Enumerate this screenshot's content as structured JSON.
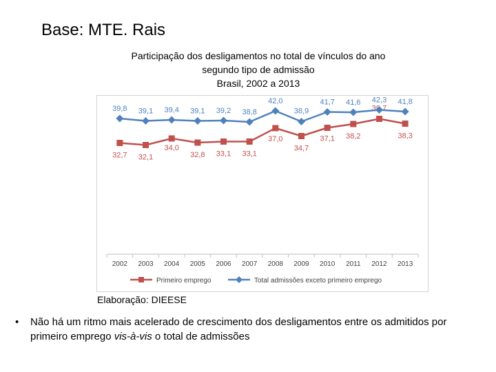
{
  "header": {
    "source": "Base: MTE. Rais"
  },
  "footer": {
    "credit": "Elaboração: DIEESE"
  },
  "bullet": {
    "symbol": "•",
    "text_before": "Não há um ritmo mais acelerado de crescimento dos desligamentos entre os admitidos por primeiro emprego ",
    "text_italic": "vis-à-vis",
    "text_after": " o total de admissões"
  },
  "chart_data": {
    "type": "line",
    "title": "Participação dos desligamentos no total de vínculos do ano segundo tipo de admissão Brasil, 2002 a 2013",
    "title_lines": [
      "Participação dos desligamentos no total de vínculos do ano",
      "segundo tipo de admissão",
      "Brasil, 2002 a 2013"
    ],
    "categories": [
      "2002",
      "2003",
      "2004",
      "2005",
      "2006",
      "2007",
      "2008",
      "2009",
      "2010",
      "2011",
      "2012",
      "2013"
    ],
    "ylim": [
      0,
      44
    ],
    "xlabel": "",
    "ylabel": "",
    "grid": false,
    "legend_position": "bottom",
    "series": [
      {
        "name": "Primeiro emprego",
        "color": "#c0504d",
        "marker": "square",
        "values": [
          32.7,
          32.1,
          34.0,
          32.8,
          33.1,
          33.1,
          37.0,
          34.7,
          37.1,
          38.2,
          39.7,
          38.3
        ],
        "labels": [
          "32,7",
          "32,1",
          "34,0",
          "32,8",
          "33,1",
          "33,1",
          "37,0",
          "34,7",
          "37,1",
          "38,2",
          "39,7",
          "38,3"
        ]
      },
      {
        "name": "Total admissões exceto primeiro emprego",
        "color": "#4f81bd",
        "marker": "diamond",
        "values": [
          39.8,
          39.1,
          39.4,
          39.1,
          39.2,
          38.8,
          42.0,
          38.9,
          41.7,
          41.6,
          42.3,
          41.8
        ],
        "labels": [
          "39,8",
          "39,1",
          "39,4",
          "39,1",
          "39,2",
          "38,8",
          "42,0",
          "38,9",
          "41,7",
          "41,6",
          "42,3",
          "41,8"
        ]
      }
    ]
  }
}
